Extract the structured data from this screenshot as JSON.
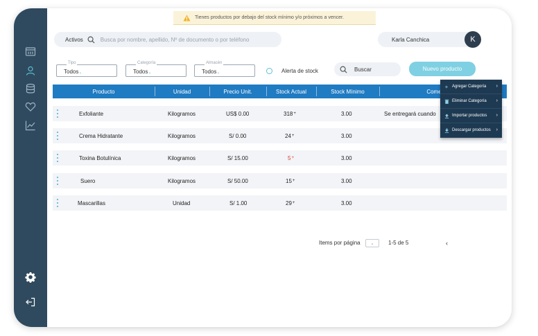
{
  "alert": {
    "message": "Tienes productos por debajo del stock mínimo y/o próximos a vencer."
  },
  "search": {
    "status": "Activos",
    "placeholder": "Busca por nombre, apellido, Nº de documento o por teléfono"
  },
  "user": {
    "name": "Karla Canchica",
    "initial": "K"
  },
  "filters": [
    {
      "label": "Tipo",
      "value": "Todos"
    },
    {
      "label": "Categoría",
      "value": "Todos"
    },
    {
      "label": "Almacén",
      "value": "Todos"
    }
  ],
  "stock_alert_label": "Alerta de stock",
  "buttons": {
    "search": "Buscar",
    "new_product": "Nuevo producto"
  },
  "table": {
    "headers": [
      "Producto",
      "Unidad",
      "Precio Unit.",
      "Stock Actual",
      "Stock Mínimo",
      "Come"
    ],
    "rows": [
      {
        "producto": "Exfoliante",
        "unidad": "Kilogramos",
        "precio": "US$ 0.00",
        "stock": "318",
        "minimo": "3.00",
        "comentario": "Se entregará cuando"
      },
      {
        "producto": "Crema Hidratante",
        "unidad": "Kilogramos",
        "precio": "S/ 0.00",
        "stock": "24",
        "minimo": "3.00",
        "comentario": ""
      },
      {
        "producto": "Toxina Botulínica",
        "unidad": "Kilogramos",
        "precio": "S/ 15.00",
        "stock": "5",
        "minimo": "3.00",
        "comentario": ""
      },
      {
        "producto": "Suero",
        "unidad": "Kilogramos",
        "precio": "S/ 50.00",
        "stock": "15",
        "minimo": "3.00",
        "comentario": ""
      },
      {
        "producto": "Mascarillas",
        "unidad": "Unidad",
        "precio": "S/ 1.00",
        "stock": "29",
        "minimo": "3.00",
        "comentario": ""
      }
    ]
  },
  "menu": {
    "items": [
      {
        "label": "Agregar Categoría",
        "icon": "plus-icon"
      },
      {
        "label": "Eliminar Categoría",
        "icon": "trash-icon"
      },
      {
        "label": "Importar productos",
        "icon": "upload-icon"
      },
      {
        "label": "Descargar productos",
        "icon": "download-icon"
      }
    ]
  },
  "pagination": {
    "label": "Items por página",
    "range": "1-5 de 5"
  },
  "colors": {
    "sidebar": "#2f4a5f",
    "header": "#1f7bc2",
    "accent": "#7fd0e2",
    "menu": "#1e3a52",
    "low_stock": "#d93a2b"
  }
}
